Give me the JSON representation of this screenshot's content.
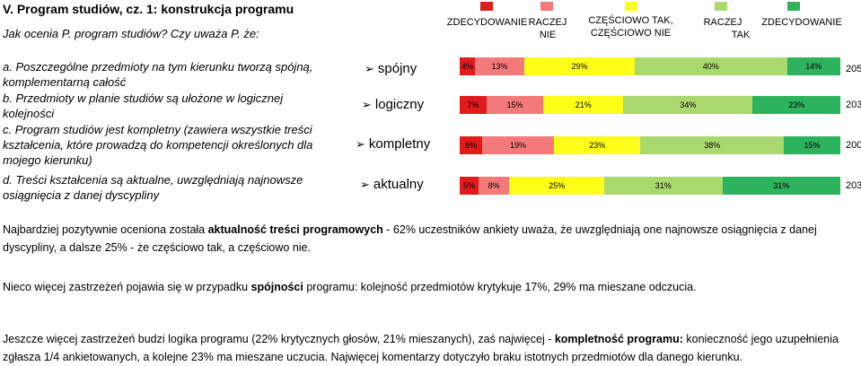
{
  "header": {
    "title": "V. Program studiów, cz. 1: konstrukcja programu",
    "subtitle": "Jak ocenia P. program studiów? Czy uważa P. że:"
  },
  "legend": [
    {
      "line1": "ZDECYDOWANIE",
      "line2": "",
      "color": "#e31a1c"
    },
    {
      "line1": "RACZEJ",
      "line2": "NIE",
      "color": "#f4797a"
    },
    {
      "line1": "CZĘŚCIOWO TAK,",
      "line2": "CZĘŚCIOWO NIE",
      "color": "#ffff1a"
    },
    {
      "line1": "RACZEJ",
      "line2": "TAK",
      "color": "#a9d86e"
    },
    {
      "line1": "ZDECYDOWANIE",
      "line2": "",
      "color": "#2db35d"
    }
  ],
  "questions": [
    {
      "text": "a. Poszczególne przedmioty na tym kierunku tworzą spójną, komplementarną całość"
    },
    {
      "text": "b. Przedmioty w planie studiów są ułożone w logicznej kolejności"
    },
    {
      "text": "c. Program studiów jest kompletny (zawiera wszystkie treści kształcenia, które prowadzą do kompetencji określonych dla mojego kierunku)"
    },
    {
      "text": "d. Treści kształcenia są aktualne, uwzględniają najnowsze osiągnięcia z danej dyscypliny"
    }
  ],
  "chart_data": {
    "type": "bar",
    "stacked": true,
    "orientation": "horizontal",
    "categories": [
      "spójny",
      "logiczny",
      "kompletny",
      "aktualny"
    ],
    "n": [
      "205",
      "203",
      "200",
      "203"
    ],
    "series": [
      {
        "name": "ZDECYDOWANIE NIE",
        "color": "#e31a1c",
        "values": [
          4,
          7,
          6,
          5
        ],
        "labels": [
          "4%",
          "7%",
          "6%",
          "5%"
        ]
      },
      {
        "name": "RACZEJ NIE",
        "color": "#f4797a",
        "values": [
          13,
          15,
          19,
          8
        ],
        "labels": [
          "13%",
          "15%",
          "19%",
          "8%"
        ]
      },
      {
        "name": "CZĘŚCIOWO TAK, CZĘŚCIOWO NIE",
        "color": "#ffff1a",
        "values": [
          29,
          21,
          23,
          25
        ],
        "labels": [
          "29%",
          "21%",
          "23%",
          "25%"
        ]
      },
      {
        "name": "RACZEJ TAK",
        "color": "#a9d86e",
        "values": [
          40,
          34,
          38,
          31
        ],
        "labels": [
          "40%",
          "34%",
          "38%",
          "31%"
        ]
      },
      {
        "name": "ZDECYDOWANIE TAK",
        "color": "#2db35d",
        "values": [
          14,
          23,
          15,
          31
        ],
        "labels": [
          "14%",
          "23%",
          "15%",
          "31%"
        ]
      }
    ]
  },
  "summary": [
    {
      "parts": [
        {
          "t": "Najbardziej pozytywnie oceniona została ",
          "b": false
        },
        {
          "t": "aktualność treści programowych",
          "b": true
        },
        {
          "t": " - 62% uczestników ankiety uważa, że uwzględniają one najnowsze osiągnięcia z danej dyscypliny, a dalsze 25% - że częściowo tak, a częściowo nie.",
          "b": false
        }
      ]
    },
    {
      "parts": [
        {
          "t": "Nieco więcej zastrzeżeń pojawia się w przypadku ",
          "b": false
        },
        {
          "t": "spójności",
          "b": true
        },
        {
          "t": " programu: kolejność przedmiotów krytykuje 17%, 29% ma mieszane odczucia.",
          "b": false
        }
      ]
    },
    {
      "parts": [
        {
          "t": "Jeszcze więcej zastrzeżeń budzi logika programu (22% krytycznych głosów, 21% mieszanych), zaś najwięcej - ",
          "b": false
        },
        {
          "t": "kompletność programu:",
          "b": true
        },
        {
          "t": " konieczność jego uzupełnienia zgłasza 1/4 ankietowanych, a kolejne 23% ma mieszane uczucia. Najwięcej komentarzy dotyczyło braku istotnych przedmiotów dla danego kierunku.",
          "b": false
        }
      ]
    }
  ]
}
